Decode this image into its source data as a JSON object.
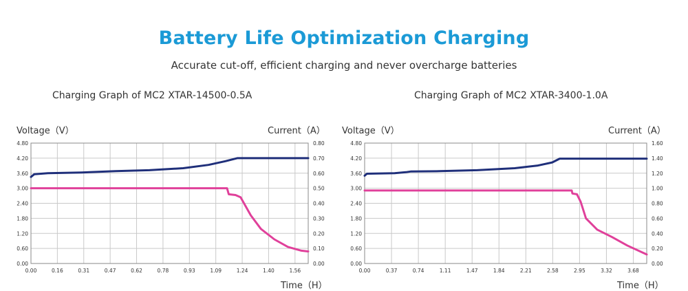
{
  "header": {
    "title": "Battery Life Optimization Charging",
    "subtitle": "Accurate cut-off, efficient charging and never overcharge batteries"
  },
  "colors": {
    "title": "#1b9ad6",
    "voltage": "#1f2f7a",
    "current": "#e0409a",
    "grid": "#c9c9c9"
  },
  "chart_data": [
    {
      "type": "line",
      "title": "Charging Graph of MC2 XTAR-14500-0.5A",
      "ylabel": "Voltage（V）",
      "y2label": "Current（A）",
      "xlabel": "Time（H）",
      "xlim": [
        0,
        1.64
      ],
      "ylim": [
        0,
        4.8
      ],
      "y2lim": [
        0,
        0.8
      ],
      "x_ticks": [
        "0.00",
        "0.16",
        "0.31",
        "0.47",
        "0.62",
        "0.78",
        "0.93",
        "1.09",
        "1.24",
        "1.40",
        "1.56"
      ],
      "y_ticks": [
        "4.80",
        "4.20",
        "3.60",
        "3.00",
        "2.40",
        "1.80",
        "1.20",
        "0.60",
        "0.00"
      ],
      "y2_ticks": [
        "0.80",
        "0.70",
        "0.60",
        "0.50",
        "0.40",
        "0.30",
        "0.20",
        "0.10",
        "0.00"
      ],
      "grid": true,
      "series": [
        {
          "axis": "left",
          "color": "#1f2f7a",
          "x": [
            0,
            0.02,
            0.1,
            0.3,
            0.5,
            0.7,
            0.9,
            1.05,
            1.15,
            1.22,
            1.4,
            1.64
          ],
          "y": [
            3.45,
            3.56,
            3.6,
            3.63,
            3.68,
            3.72,
            3.8,
            3.93,
            4.08,
            4.2,
            4.2,
            4.2
          ]
        },
        {
          "axis": "right",
          "color": "#e0409a",
          "x": [
            0,
            0.3,
            0.6,
            0.9,
            1.16,
            1.17,
            1.21,
            1.24,
            1.3,
            1.36,
            1.44,
            1.52,
            1.6,
            1.64
          ],
          "y": [
            0.5,
            0.5,
            0.5,
            0.5,
            0.5,
            0.46,
            0.455,
            0.44,
            0.32,
            0.23,
            0.16,
            0.11,
            0.085,
            0.08
          ]
        }
      ]
    },
    {
      "type": "line",
      "title": "Charging Graph of MC2 XTAR-3400-1.0A",
      "ylabel": "Voltage（V）",
      "y2label": "Current（A）",
      "xlabel": "Time（H）",
      "xlim": [
        0,
        3.76
      ],
      "ylim": [
        0,
        4.8
      ],
      "y2lim": [
        0,
        1.6
      ],
      "x_ticks": [
        "0.00",
        "0.37",
        "0.74",
        "1.11",
        "1.47",
        "1.84",
        "2.21",
        "2.58",
        "2.95",
        "3.32",
        "3.68"
      ],
      "y_ticks": [
        "4.80",
        "4.20",
        "3.60",
        "3.00",
        "2.40",
        "1.80",
        "1.20",
        "0.60",
        "0.00"
      ],
      "y2_ticks": [
        "1.60",
        "1.40",
        "1.20",
        "1.00",
        "0.80",
        "0.60",
        "0.40",
        "0.20",
        "0.00"
      ],
      "grid": true,
      "series": [
        {
          "axis": "left",
          "color": "#1f2f7a",
          "x": [
            0,
            0.03,
            0.4,
            0.55,
            0.62,
            1.0,
            1.5,
            2.0,
            2.3,
            2.5,
            2.6,
            3.0,
            3.76
          ],
          "y": [
            3.5,
            3.58,
            3.6,
            3.64,
            3.67,
            3.68,
            3.72,
            3.8,
            3.9,
            4.03,
            4.18,
            4.18,
            4.18
          ]
        },
        {
          "axis": "right",
          "color": "#e0409a",
          "x": [
            0,
            0.5,
            1.5,
            2.5,
            2.76,
            2.77,
            2.83,
            2.88,
            2.95,
            3.1,
            3.3,
            3.5,
            3.76
          ],
          "y": [
            0.97,
            0.97,
            0.97,
            0.97,
            0.97,
            0.93,
            0.92,
            0.82,
            0.6,
            0.45,
            0.35,
            0.24,
            0.12
          ]
        }
      ]
    }
  ]
}
